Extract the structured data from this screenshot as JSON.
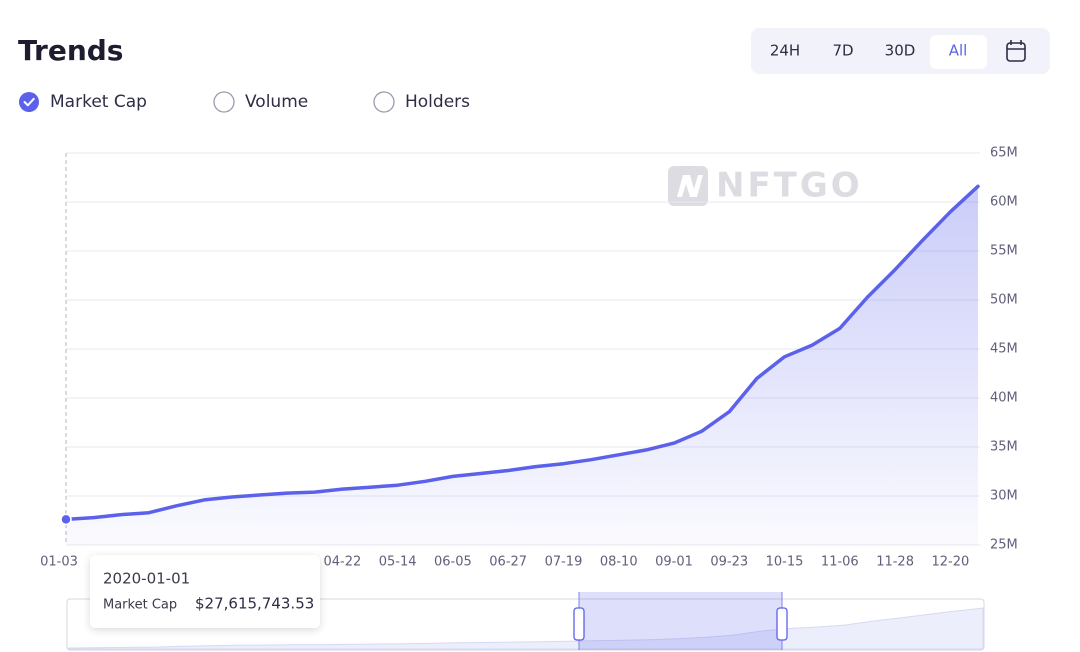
{
  "chart_data": {
    "type": "area",
    "title": "Trends",
    "watermark": "NFTGO",
    "options": [
      {
        "label": "Market Cap",
        "checked": true
      },
      {
        "label": "Volume",
        "checked": false
      },
      {
        "label": "Holders",
        "checked": false
      }
    ],
    "ranges": [
      "24H",
      "7D",
      "30D",
      "All"
    ],
    "active_range": 3,
    "categories": [
      "01-03",
      null,
      null,
      null,
      null,
      null,
      null,
      null,
      null,
      null,
      "04-22",
      null,
      "05-14",
      null,
      "06-05",
      null,
      "06-27",
      null,
      "07-19",
      null,
      "08-10",
      null,
      "09-01",
      null,
      "09-23",
      null,
      "10-15",
      null,
      "11-06",
      null,
      "11-28",
      null,
      "12-20",
      null
    ],
    "series": [
      {
        "name": "Market Cap",
        "color": "#5b61eb",
        "values": [
          27615743.53,
          27800000,
          28100000,
          28300000,
          29000000,
          29600000,
          29900000,
          30100000,
          30300000,
          30400000,
          30700000,
          30900000,
          31100000,
          31500000,
          32000000,
          32300000,
          32600000,
          33000000,
          33300000,
          33700000,
          34200000,
          34700000,
          35400000,
          36600000,
          38600000,
          42000000,
          44200000,
          45400000,
          47100000,
          50300000,
          53100000,
          56100000,
          59000000,
          61600000
        ]
      }
    ],
    "ylim": [
      25000000,
      65000000
    ],
    "yticks": [
      {
        "value": 25000000,
        "label": "25M"
      },
      {
        "value": 30000000,
        "label": "30M"
      },
      {
        "value": 35000000,
        "label": "35M"
      },
      {
        "value": 40000000,
        "label": "40M"
      },
      {
        "value": 45000000,
        "label": "45M"
      },
      {
        "value": 50000000,
        "label": "50M"
      },
      {
        "value": 55000000,
        "label": "55M"
      },
      {
        "value": 60000000,
        "label": "60M"
      },
      {
        "value": 65000000,
        "label": "65M"
      }
    ],
    "grid": true,
    "tooltip": {
      "index": 0,
      "date": "2020-01-01",
      "value_label": "$27,615,743.53"
    }
  }
}
